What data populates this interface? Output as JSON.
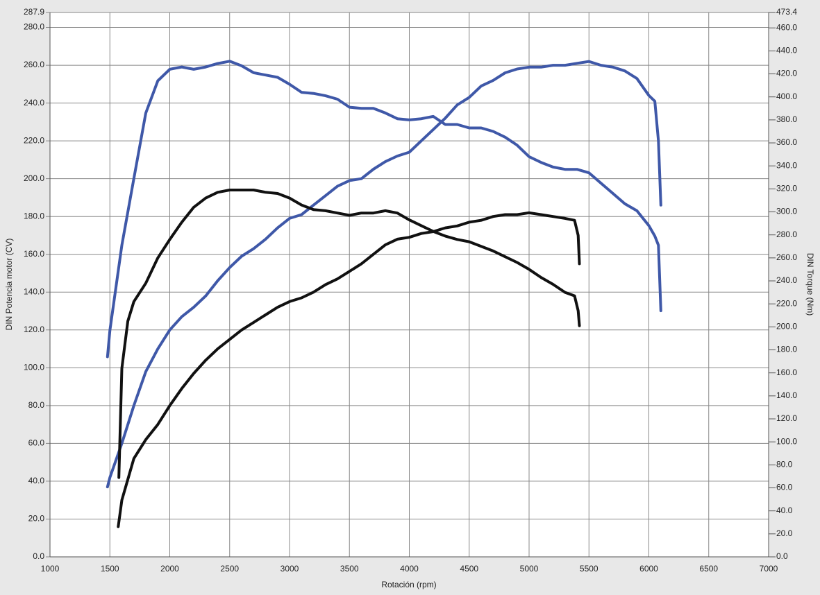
{
  "chart_data": {
    "type": "line",
    "xlabel": "Rotación (rpm)",
    "ylabel": "DIN Potencia motor (CV)",
    "y2label": "DIN Torque (Nm)",
    "xlim": [
      1000,
      7000
    ],
    "xticks": [
      1000,
      1500,
      2000,
      2500,
      3000,
      3500,
      4000,
      4500,
      5000,
      5500,
      6000,
      6500,
      7000
    ],
    "ylim": [
      0,
      287.9
    ],
    "yticks": [
      {
        "value": 0,
        "label": "0.0"
      },
      {
        "value": 20,
        "label": "20.0"
      },
      {
        "value": 40,
        "label": "40.0"
      },
      {
        "value": 60,
        "label": "60.0"
      },
      {
        "value": 80,
        "label": "80.0"
      },
      {
        "value": 100,
        "label": "100.0"
      },
      {
        "value": 120,
        "label": "120.0"
      },
      {
        "value": 140,
        "label": "140.0"
      },
      {
        "value": 160,
        "label": "160.0"
      },
      {
        "value": 180,
        "label": "180.0"
      },
      {
        "value": 200,
        "label": "200.0"
      },
      {
        "value": 220,
        "label": "220.0"
      },
      {
        "value": 240,
        "label": "240.0"
      },
      {
        "value": 260,
        "label": "260.0"
      },
      {
        "value": 280,
        "label": "280.0"
      },
      287.9
    ],
    "y2lim": [
      0,
      473.4
    ],
    "y2ticks": [
      {
        "value": 0,
        "label": "0.0"
      },
      {
        "value": 20,
        "label": "20.0"
      },
      {
        "value": 40,
        "label": "40.0"
      },
      {
        "value": 60,
        "label": "60.0"
      },
      {
        "value": 80,
        "label": "80.0"
      },
      {
        "value": 100,
        "label": "100.0"
      },
      {
        "value": 120,
        "label": "120.0"
      },
      {
        "value": 140,
        "label": "140.0"
      },
      {
        "value": 160,
        "label": "160.0"
      },
      {
        "value": 180,
        "label": "180.0"
      },
      {
        "value": 200,
        "label": "200.0"
      },
      {
        "value": 220,
        "label": "220.0"
      },
      {
        "value": 240,
        "label": "240.0"
      },
      {
        "value": 260,
        "label": "260.0"
      },
      {
        "value": 280,
        "label": "280.0"
      },
      {
        "value": 300,
        "label": "300.0"
      },
      {
        "value": 320,
        "label": "320.0"
      },
      {
        "value": 340,
        "label": "340.0"
      },
      {
        "value": 360,
        "label": "360.0"
      },
      {
        "value": 380,
        "label": "380.0"
      },
      {
        "value": 400,
        "label": "400.0"
      },
      {
        "value": 420,
        "label": "420.0"
      },
      {
        "value": 440,
        "label": "440.0"
      },
      {
        "value": 460,
        "label": "460.0"
      },
      473.4
    ],
    "grid": true,
    "series": [
      {
        "color": "#3f58a8",
        "axis": "y2",
        "x": [
          1480,
          1500,
          1600,
          1700,
          1800,
          1900,
          2000,
          2100,
          2200,
          2300,
          2400,
          2500,
          2600,
          2700,
          2800,
          2900,
          3000,
          3100,
          3200,
          3300,
          3400,
          3500,
          3600,
          3700,
          3800,
          3900,
          4000,
          4100,
          4200,
          4300,
          4400,
          4500,
          4600,
          4700,
          4800,
          4900,
          5000,
          5100,
          5200,
          5300,
          5400,
          5500,
          5600,
          5700,
          5800,
          5900,
          6000,
          6050,
          6080,
          6100
        ],
        "values": [
          174,
          197,
          271,
          329,
          386,
          414,
          424,
          426,
          424,
          426,
          429,
          431,
          427,
          421,
          419,
          417,
          411,
          404,
          403,
          401,
          398,
          391,
          390,
          390,
          386,
          381,
          380,
          381,
          383,
          376,
          376,
          373,
          373,
          370,
          365,
          358,
          348,
          343,
          339,
          337,
          337,
          334,
          325,
          316,
          307,
          301,
          288,
          279,
          271,
          214
        ]
      },
      {
        "color": "#3f58a8",
        "x": [
          1480,
          1500,
          1600,
          1700,
          1800,
          1900,
          2000,
          2100,
          2200,
          2300,
          2400,
          2500,
          2600,
          2700,
          2800,
          2900,
          3000,
          3100,
          3200,
          3300,
          3400,
          3500,
          3600,
          3700,
          3800,
          3900,
          4000,
          4100,
          4200,
          4300,
          4400,
          4500,
          4600,
          4700,
          4800,
          4900,
          5000,
          5100,
          5200,
          5300,
          5400,
          5500,
          5600,
          5700,
          5800,
          5900,
          6000,
          6050,
          6080,
          6100
        ],
        "values": [
          37,
          42,
          60,
          80,
          98,
          110,
          120,
          127,
          132,
          138,
          146,
          153,
          159,
          163,
          168,
          174,
          179,
          181,
          186,
          191,
          196,
          199,
          200,
          205,
          209,
          212,
          214,
          220,
          226,
          232,
          239,
          243,
          249,
          252,
          256,
          258,
          259,
          259,
          260,
          260,
          261,
          262,
          260,
          259,
          257,
          253,
          244,
          241,
          220,
          186
        ]
      },
      {
        "color": "#111111",
        "axis": "y2",
        "x": [
          1575,
          1600,
          1650,
          1700,
          1800,
          1900,
          2000,
          2100,
          2200,
          2300,
          2400,
          2500,
          2600,
          2700,
          2800,
          2900,
          3000,
          3100,
          3200,
          3300,
          3400,
          3500,
          3600,
          3700,
          3800,
          3900,
          4000,
          4100,
          4200,
          4300,
          4400,
          4500,
          4600,
          4700,
          4800,
          4900,
          5000,
          5100,
          5200,
          5300,
          5380,
          5410,
          5420
        ],
        "values": [
          69,
          164,
          205,
          222,
          238,
          260,
          276,
          291,
          304,
          312,
          317,
          319,
          319,
          319,
          317,
          316,
          312,
          306,
          302,
          301,
          299,
          297,
          299,
          299,
          301,
          299,
          293,
          288,
          283,
          279,
          276,
          274,
          270,
          266,
          261,
          256,
          250,
          243,
          237,
          230,
          227,
          214,
          201
        ]
      },
      {
        "color": "#111111",
        "x": [
          1570,
          1600,
          1700,
          1800,
          1900,
          2000,
          2100,
          2200,
          2300,
          2400,
          2500,
          2600,
          2700,
          2800,
          2900,
          3000,
          3100,
          3200,
          3300,
          3400,
          3500,
          3600,
          3700,
          3800,
          3900,
          4000,
          4100,
          4200,
          4300,
          4400,
          4500,
          4600,
          4700,
          4800,
          4900,
          5000,
          5100,
          5200,
          5300,
          5380,
          5410,
          5420
        ],
        "values": [
          16,
          30,
          52,
          62,
          70,
          80,
          89,
          97,
          104,
          110,
          115,
          120,
          124,
          128,
          132,
          135,
          137,
          140,
          144,
          147,
          151,
          155,
          160,
          165,
          168,
          169,
          171,
          172,
          174,
          175,
          177,
          178,
          180,
          181,
          181,
          182,
          181,
          180,
          179,
          178,
          170,
          155
        ]
      }
    ]
  }
}
